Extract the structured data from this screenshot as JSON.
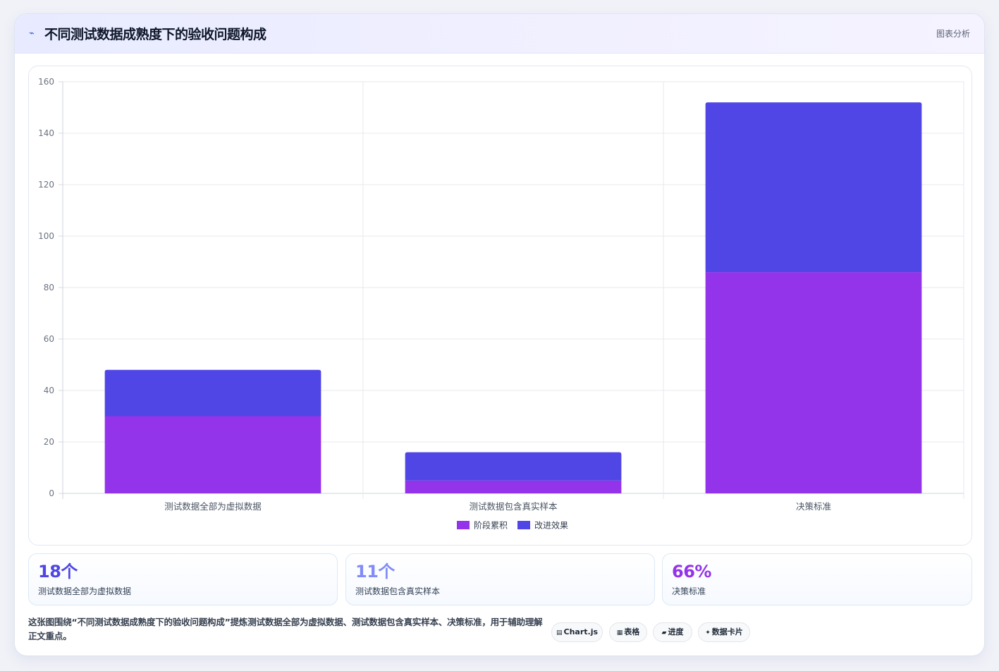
{
  "header": {
    "icon": "trend-line-icon",
    "title": "不同测试数据成熟度下的验收问题构成",
    "tag": "图表分析"
  },
  "chart_data": {
    "type": "bar",
    "stacked": true,
    "categories": [
      "测试数据全部为虚拟数据",
      "测试数据包含真实样本",
      "决策标准"
    ],
    "series": [
      {
        "name": "阶段累积",
        "values": [
          30,
          5,
          86
        ],
        "color": "#9333ea"
      },
      {
        "name": "改进效果",
        "values": [
          18,
          11,
          66
        ],
        "color": "#4f46e5"
      }
    ],
    "ylim": [
      0,
      160
    ],
    "yticks": [
      0,
      20,
      40,
      60,
      80,
      100,
      120,
      140,
      160
    ],
    "grid": true,
    "legend": "bottom"
  },
  "stats": [
    {
      "value": "18个",
      "label": "测试数据全部为虚拟数据",
      "color": "#4f46e5"
    },
    {
      "value": "11个",
      "label": "测试数据包含真实样本",
      "color": "#818cf8"
    },
    {
      "value": "66%",
      "label": "决策标准",
      "color": "#9333ea"
    }
  ],
  "description": "这张图围绕“不同测试数据成熟度下的验收问题构成”提炼测试数据全部为虚拟数据、测试数据包含真实样本、决策标准，用于辅助理解正文重点。",
  "chips": [
    {
      "icon": "chart-icon",
      "glyph": "▤",
      "label": "Chart.js"
    },
    {
      "icon": "table-icon",
      "glyph": "▦",
      "label": "表格"
    },
    {
      "icon": "progress-icon",
      "glyph": "▰",
      "label": "进度"
    },
    {
      "icon": "sparkle-icon",
      "glyph": "✦",
      "label": "数据卡片"
    }
  ]
}
